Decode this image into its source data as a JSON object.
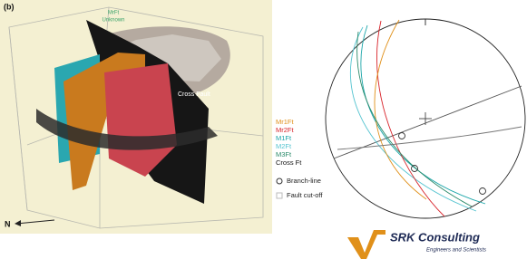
{
  "figure": {
    "panel_label": "(b)",
    "model_labels": [
      "MrFt",
      "Unknown"
    ],
    "cross_fault_label": "Cross Fault",
    "north_label": "N",
    "legend": [
      {
        "label": "Mr1Ft",
        "color": "#e0901a"
      },
      {
        "label": "Mr2Ft",
        "color": "#d8232a"
      },
      {
        "label": "M1Ft",
        "color": "#1aa5a8"
      },
      {
        "label": "M2Ft",
        "color": "#56c4d0"
      },
      {
        "label": "M3Ft",
        "color": "#2a8a6a"
      },
      {
        "label": "Cross Ft",
        "color": "#111111"
      }
    ],
    "symbols": [
      "Branch-line",
      "Fault cut-off"
    ],
    "logo": {
      "name": "SRK Consulting",
      "tagline": "Engineers and Scientists"
    }
  }
}
